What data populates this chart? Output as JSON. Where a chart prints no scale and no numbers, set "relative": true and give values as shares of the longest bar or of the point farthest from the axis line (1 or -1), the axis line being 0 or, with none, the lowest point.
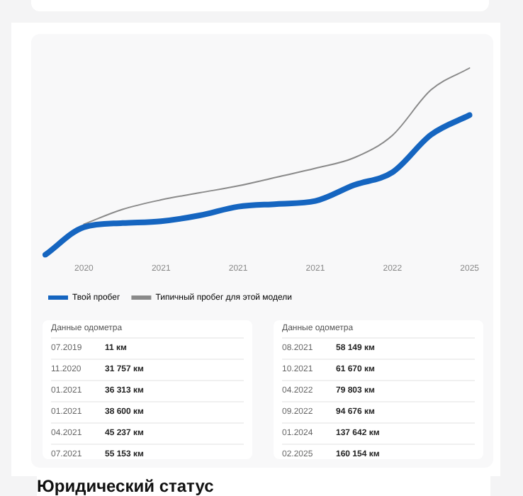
{
  "chart_data": [
    {
      "type": "line",
      "categories": [
        null,
        "2020",
        null,
        "2021",
        null,
        "2021",
        null,
        "2021",
        null,
        "2022",
        null,
        "2025"
      ],
      "series": [
        {
          "name": "Твой пробег",
          "color": "#1565c0",
          "values": [
            0,
            0.148,
            0.17,
            0.18,
            0.211,
            0.258,
            0.272,
            0.288,
            0.373,
            0.442,
            0.643,
            0.748
          ]
        },
        {
          "name": "Типичный пробег для этой модели",
          "color": "#8a8a8a",
          "values": [
            null,
            0.164,
            0.243,
            0.294,
            0.332,
            0.369,
            0.416,
            0.463,
            0.519,
            0.64,
            0.883,
            1
          ]
        }
      ],
      "relative": true,
      "legend": "bottom"
    },
    {
      "type": "other",
      "title": "Данные одометра",
      "annotations": [
        "07.2019",
        "11 км",
        "11.2020",
        "31 757 км",
        "01.2021",
        "36 313 км",
        "01.2021",
        "38 600 км",
        "04.2021",
        "45 237 км",
        "07.2021",
        "55 153 км"
      ]
    },
    {
      "type": "other",
      "title": "Данные одометра",
      "annotations": [
        "08.2021",
        "58 149 км",
        "10.2021",
        "61 670 км",
        "04.2022",
        "79 803 км",
        "09.2022",
        "94 676 км",
        "01.2024",
        "137 642 км",
        "02.2025",
        "160 154 км"
      ]
    },
    {
      "type": "other",
      "title": "Юридический статус"
    }
  ]
}
